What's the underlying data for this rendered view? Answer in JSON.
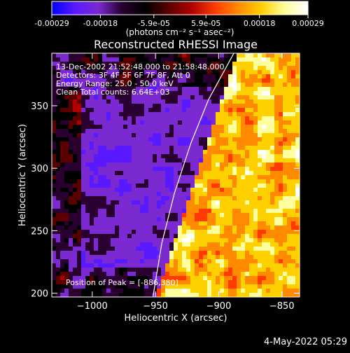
{
  "colorbar": {
    "tick_labels": [
      "-0.00029",
      "-0.00018",
      "-5.9e-05",
      "5.9e-05",
      "0.00018",
      "0.00029"
    ],
    "tick_values": [
      -0.00029,
      -0.00018,
      -5.9e-05,
      5.9e-05,
      0.00018,
      0.00029
    ],
    "range": [
      -0.00029,
      0.00029
    ],
    "units_label": "(photons cm⁻² s⁻¹ asec⁻²)",
    "colors": [
      "#0000ff",
      "#5a1aff",
      "#7a2ad0",
      "#2a0030",
      "#000000",
      "#5a0000",
      "#b00000",
      "#ff3a00",
      "#ff8a00",
      "#ffd000",
      "#ffffa0",
      "#ffffff"
    ]
  },
  "chart_data": {
    "type": "heatmap",
    "title": "Reconstructed RHESSI Image",
    "xlabel": "Heliocentric X (arcsec)",
    "ylabel": "Heliocentric Y (arcsec)",
    "xlim": [
      -1032,
      -836
    ],
    "ylim": [
      197,
      392
    ],
    "x_ticks": [
      -1000,
      -950,
      -900,
      -850
    ],
    "y_ticks": [
      200,
      250,
      300,
      350
    ],
    "x_tick_labels": [
      "−1000",
      "−950",
      "−900",
      "−850"
    ],
    "y_tick_labels": [
      "200",
      "250",
      "300",
      "350"
    ],
    "limb_curve": [
      [
        -952,
        197
      ],
      [
        -945,
        240
      ],
      [
        -935,
        280
      ],
      [
        -922,
        320
      ],
      [
        -908,
        355
      ],
      [
        -888,
        392
      ]
    ],
    "peak": [
      -886,
      380
    ],
    "annotations": {
      "time": "13-Dec-2002 21:52:48.000 to 21:58:48.000",
      "detectors": "Detectors: 3F 4F 5F 6F 7F 8F, Att 0",
      "energy": "Energy Range: 25.0 - 50.0 keV",
      "method": "Clean     Total counts: 6.64E+03",
      "peak_text": "Position of Peak = [-886,380]"
    }
  },
  "footer": {
    "date": "4-May-2022 05:29"
  }
}
